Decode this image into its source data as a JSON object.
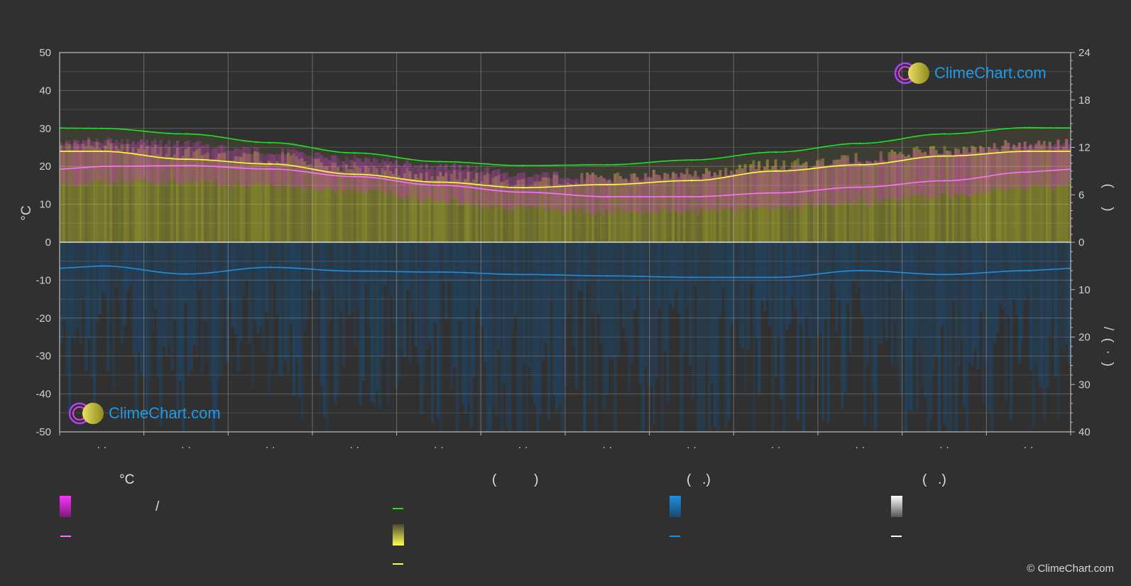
{
  "colors": {
    "background": "#303030",
    "daylight": "#22e022",
    "sunshine": "#ffff40",
    "temp_band": "#e040e0",
    "temp_line": "#ff70ff",
    "rain": "#1e8fe0",
    "snow": "#ffffff",
    "grid": "#5a5a5a"
  },
  "left_axis": {
    "title": "°C",
    "ticks": [
      "50",
      "40",
      "30",
      "20",
      "10",
      "0",
      "-10",
      "-20",
      "-30",
      "-40",
      "-50"
    ]
  },
  "right_axis_top": {
    "ticks": [
      "24",
      "18",
      "12",
      "6",
      "0"
    ],
    "title_fragment": "(     )"
  },
  "right_axis_bottom": {
    "ticks": [
      "10",
      "20",
      "30",
      "40"
    ],
    "title_fragment": "/  (  ·  )"
  },
  "x_axis": {
    "labels": [
      "· ·",
      "· ·",
      "· ·",
      "· ·",
      "· ·",
      "· ·",
      "· ·",
      "· ·",
      "· ·",
      "· ·",
      "· ·",
      "· ·"
    ]
  },
  "legend": {
    "col1_head": "°C",
    "col1_item1": "/",
    "col2_head": "(          )",
    "col3_head": "(   .)",
    "col4_head": "(   .)"
  },
  "logo_text": "ClimeChart.com",
  "copyright": "© ClimeChart.com",
  "chart_data": {
    "type": "line",
    "x": [
      1,
      2,
      3,
      4,
      5,
      6,
      7,
      8,
      9,
      10,
      11,
      12
    ],
    "ylim": [
      -50,
      50
    ],
    "y2lim_top": [
      0,
      24
    ],
    "y2lim_bottom": [
      0,
      40
    ],
    "grid": true,
    "series": [
      {
        "name": "",
        "axis": "hours",
        "color": "#22e022",
        "values": [
          14.4,
          13.7,
          12.6,
          11.3,
          10.2,
          9.7,
          9.8,
          10.4,
          11.4,
          12.5,
          13.7,
          14.5
        ]
      },
      {
        "name": "",
        "axis": "hours",
        "color": "#ffff40",
        "values": [
          11.5,
          10.5,
          9.9,
          8.6,
          7.6,
          6.9,
          7.3,
          7.8,
          9.0,
          9.8,
          10.9,
          11.5
        ]
      },
      {
        "name": "",
        "axis": "celsius",
        "color": "#ff70ff",
        "values": [
          20,
          20.2,
          19.3,
          17.3,
          15,
          13.2,
          12,
          12,
          13,
          14.5,
          16.2,
          18.5
        ]
      },
      {
        "name": "",
        "axis": "celsius",
        "color": "#e040e0",
        "band": "max",
        "values": [
          27,
          26,
          24,
          22,
          20,
          18,
          17,
          18,
          19.5,
          22,
          24,
          26
        ]
      },
      {
        "name": "",
        "axis": "celsius",
        "color": "#e040e0",
        "band": "min",
        "values": [
          16,
          16,
          15,
          13.5,
          11,
          9,
          8,
          8,
          9,
          10.5,
          12.5,
          14.5
        ]
      },
      {
        "name": "",
        "axis": "mm",
        "color": "#1e8fe0",
        "values": [
          5,
          6.7,
          5.3,
          6.1,
          6.3,
          6.8,
          7.1,
          7.4,
          7.4,
          6.0,
          6.8,
          6.0
        ]
      }
    ]
  }
}
